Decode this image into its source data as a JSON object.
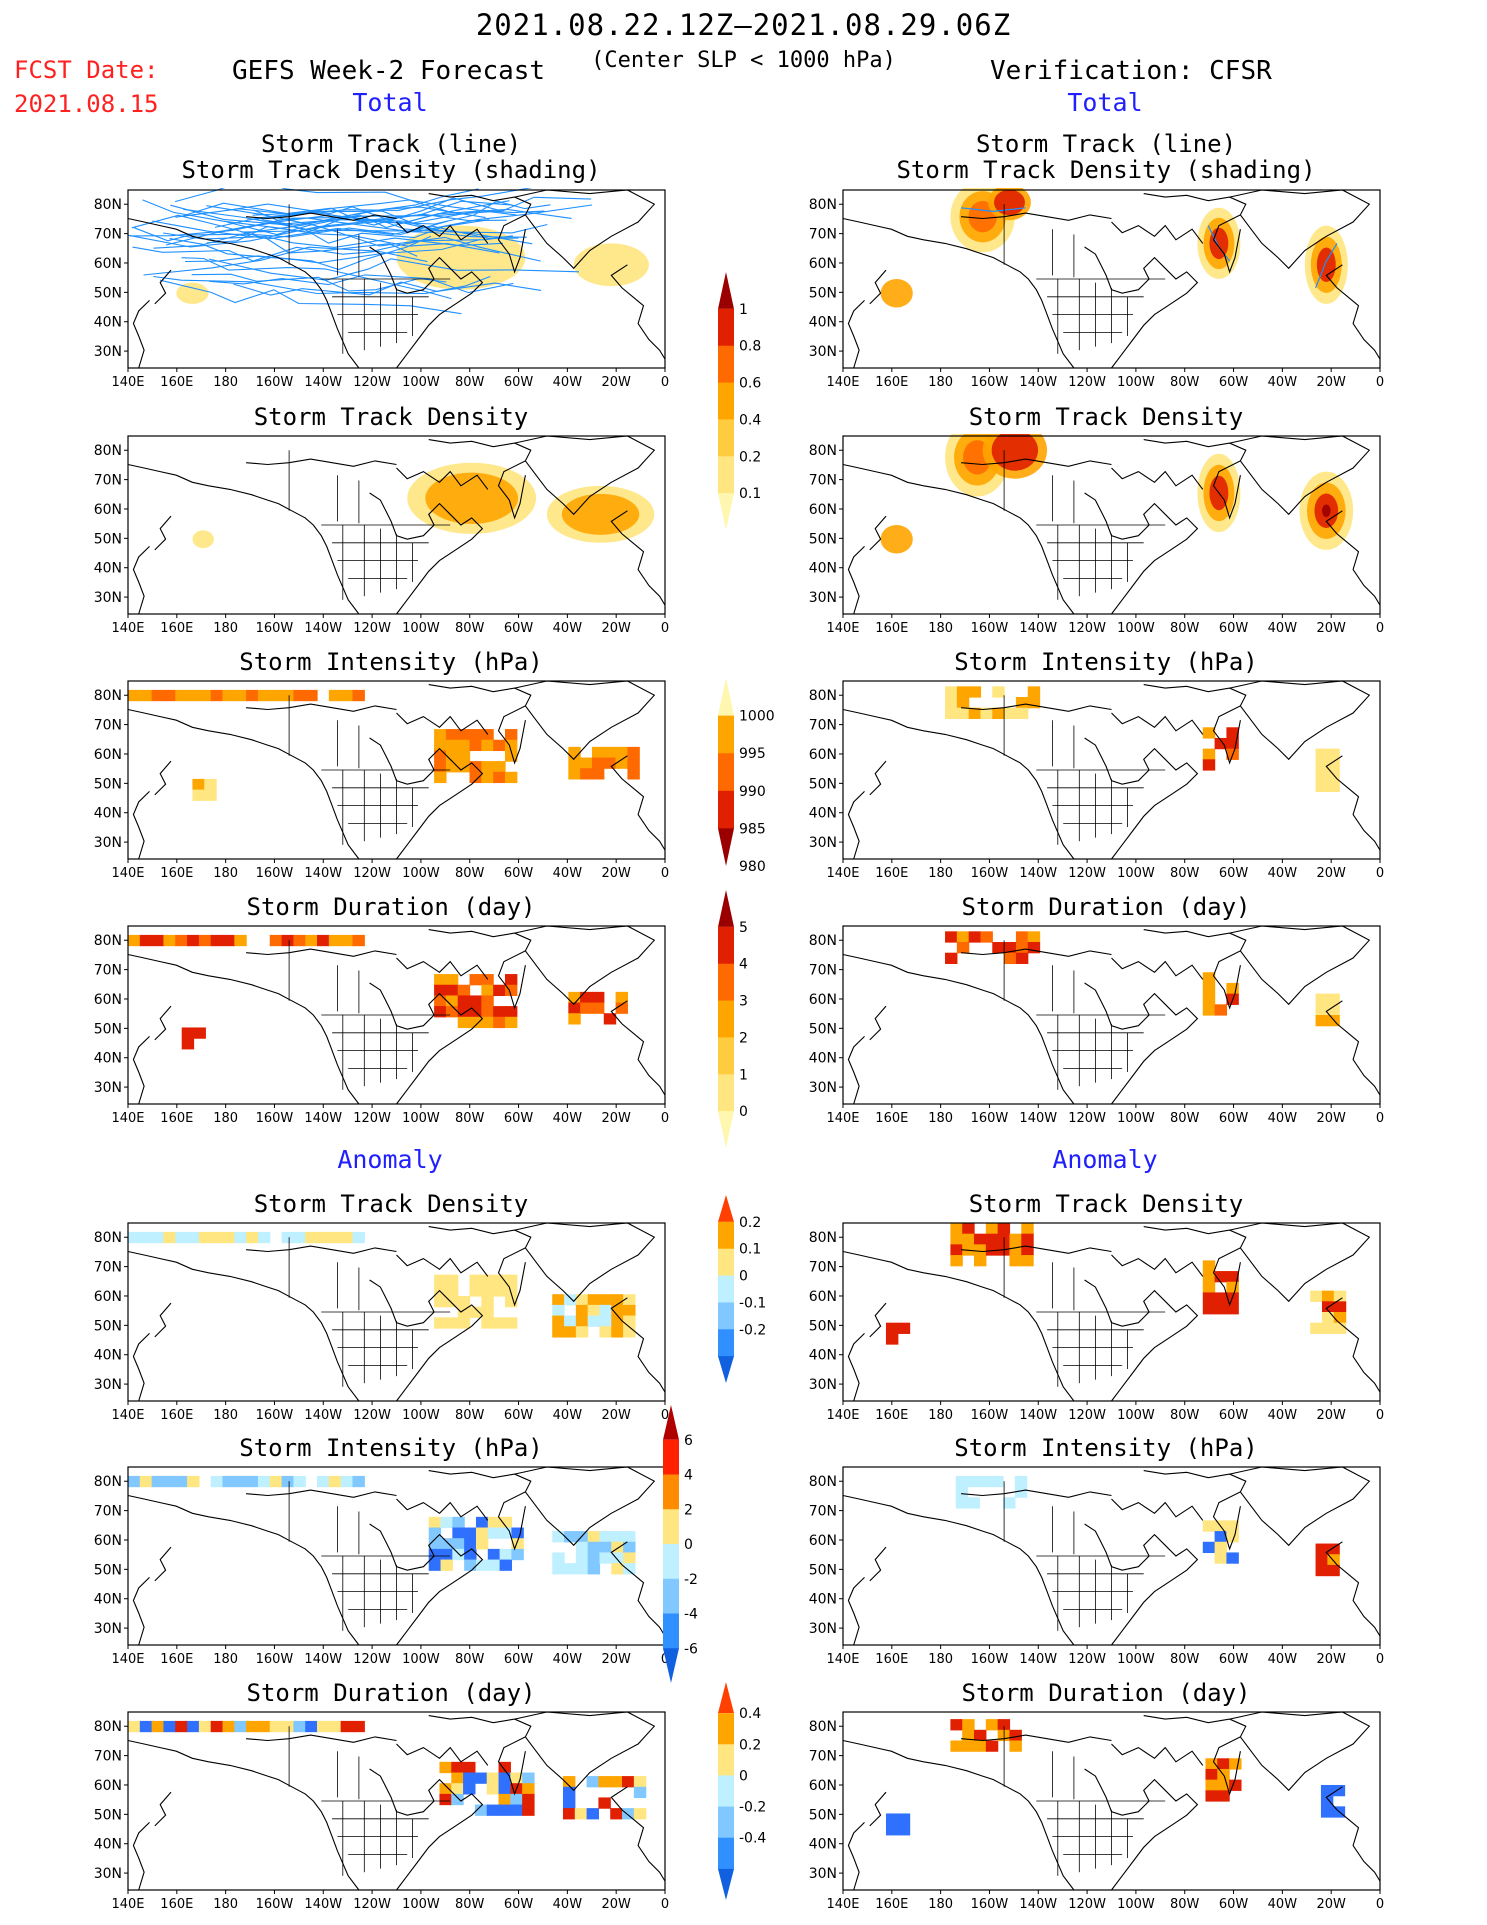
{
  "header": {
    "period": "2021.08.22.12Z–2021.08.29.06Z",
    "fcst_label": "FCST Date:",
    "fcst_date": "2021.08.15",
    "left_title": "GEFS Week-2 Forecast",
    "criterion": "(Center SLP < 1000 hPa)",
    "right_title": "Verification: CFSR"
  },
  "sections": {
    "total": "Total",
    "anomaly": "Anomaly"
  },
  "panel_titles": {
    "track_line": "Storm Track (line)",
    "track_shading": "Storm Track Density (shading)",
    "density": "Storm Track Density",
    "intensity": "Storm Intensity (hPa)",
    "duration": "Storm Duration (day)"
  },
  "axes": {
    "lat_labels": [
      "80N",
      "70N",
      "60N",
      "50N",
      "40N",
      "30N"
    ],
    "lon_labels": [
      "140E",
      "160E",
      "180",
      "160W",
      "140W",
      "120W",
      "100W",
      "80W",
      "60W",
      "40W",
      "20W",
      "0"
    ]
  },
  "colorbars": {
    "density_total": {
      "labels": [
        "1",
        "0.8",
        "0.6",
        "0.4",
        "0.2",
        "0.1"
      ],
      "colors": [
        "#9b0000",
        "#e02000",
        "#ff6a00",
        "#ffa500",
        "#ffcc40",
        "#ffe680",
        "#fff7b0"
      ]
    },
    "intensity_total": {
      "labels": [
        "1000",
        "995",
        "990",
        "985",
        "980"
      ],
      "colors": [
        "#fff7b0",
        "#ffa500",
        "#ff6a00",
        "#e02000",
        "#9b0000"
      ]
    },
    "duration_total": {
      "labels": [
        "5",
        "4",
        "3",
        "2",
        "1",
        "0"
      ],
      "colors": [
        "#9b0000",
        "#e02000",
        "#ff6a00",
        "#ffa500",
        "#ffcc40",
        "#ffe680",
        "#fff7b0"
      ]
    },
    "density_anom": {
      "labels": [
        "0.2",
        "0.1",
        "0",
        "-0.1",
        "-0.2"
      ],
      "colors": [
        "#ff4000",
        "#ffa500",
        "#ffe680",
        "#bff0ff",
        "#80c8ff",
        "#3090ff",
        "#1060e0"
      ]
    },
    "intensity_anom": {
      "labels": [
        "6",
        "4",
        "2",
        "0",
        "-2",
        "-4",
        "-6"
      ],
      "colors": [
        "#b00000",
        "#ff2000",
        "#ff8c00",
        "#ffe680",
        "#bff0ff",
        "#80c8ff",
        "#3090ff",
        "#1060e0"
      ]
    },
    "duration_anom": {
      "labels": [
        "0.4",
        "0.2",
        "0",
        "-0.2",
        "-0.4"
      ],
      "colors": [
        "#ff4000",
        "#ffa500",
        "#ffe680",
        "#bff0ff",
        "#80c8ff",
        "#3090ff",
        "#1060e0"
      ]
    }
  },
  "map_colors": {
    "track_line": "#1e90ff",
    "yellow": "#ffe680",
    "orange": "#ffa500",
    "dark_orange": "#ff6a00",
    "red": "#e02000",
    "dark_red": "#9b0000",
    "light_blue": "#bff0ff",
    "mid_blue": "#80c8ff",
    "blue": "#3070ff"
  }
}
